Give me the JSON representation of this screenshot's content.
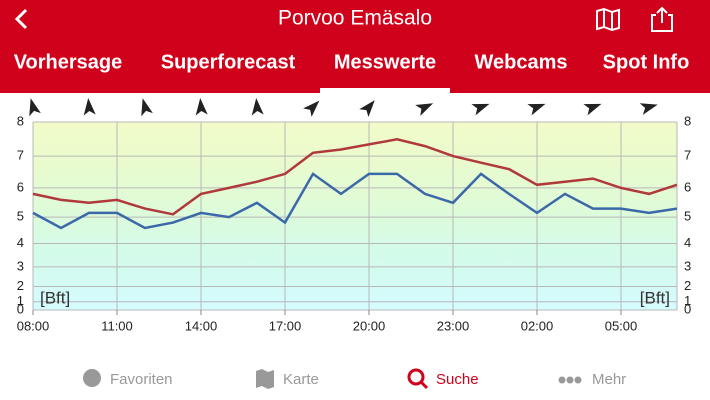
{
  "header": {
    "title": "Porvoo Emäsalo"
  },
  "tabs": [
    "Vorhersage",
    "Superforecast",
    "Messwerte",
    "Webcams",
    "Spot Info"
  ],
  "active_tab": 2,
  "chart_data": {
    "type": "line",
    "categories": [
      "08:00",
      null,
      null,
      "11:00",
      null,
      null,
      "14:00",
      null,
      null,
      "17:00",
      null,
      null,
      "20:00",
      null,
      null,
      "23:00",
      null,
      null,
      "02:00",
      null,
      null,
      "05:00",
      null,
      null
    ],
    "series": [
      {
        "color": "#b0393b",
        "values": [
          5.8,
          5.6,
          5.5,
          5.6,
          5.3,
          5.1,
          5.8,
          6.0,
          6.2,
          6.45,
          7.1,
          7.2,
          7.35,
          7.5,
          7.3,
          7.0,
          6.8,
          6.6,
          6.1,
          6.2,
          6.3,
          6.0,
          5.8,
          6.1
        ]
      },
      {
        "color": "#3b68a8",
        "values": [
          5.15,
          4.6,
          5.15,
          5.15,
          4.6,
          4.8,
          5.15,
          5.0,
          5.5,
          4.8,
          6.45,
          5.8,
          6.45,
          6.45,
          5.8,
          5.5,
          6.45,
          5.8,
          5.15,
          5.8,
          5.3,
          5.3,
          5.15,
          5.3
        ]
      }
    ],
    "y_label": "[Bft]",
    "ylim": [
      0,
      8
    ],
    "yticks": [
      0,
      1,
      2,
      3,
      4,
      5,
      6,
      7,
      8
    ],
    "y_scale": "beaufort",
    "grid": true,
    "wind_direction": [
      -15,
      -5,
      -15,
      -5,
      -5,
      45,
      40,
      65,
      70,
      70,
      70,
      75
    ]
  },
  "nav": [
    "Favoriten",
    "Karte",
    "Suche",
    "Mehr"
  ],
  "active_nav": 2
}
